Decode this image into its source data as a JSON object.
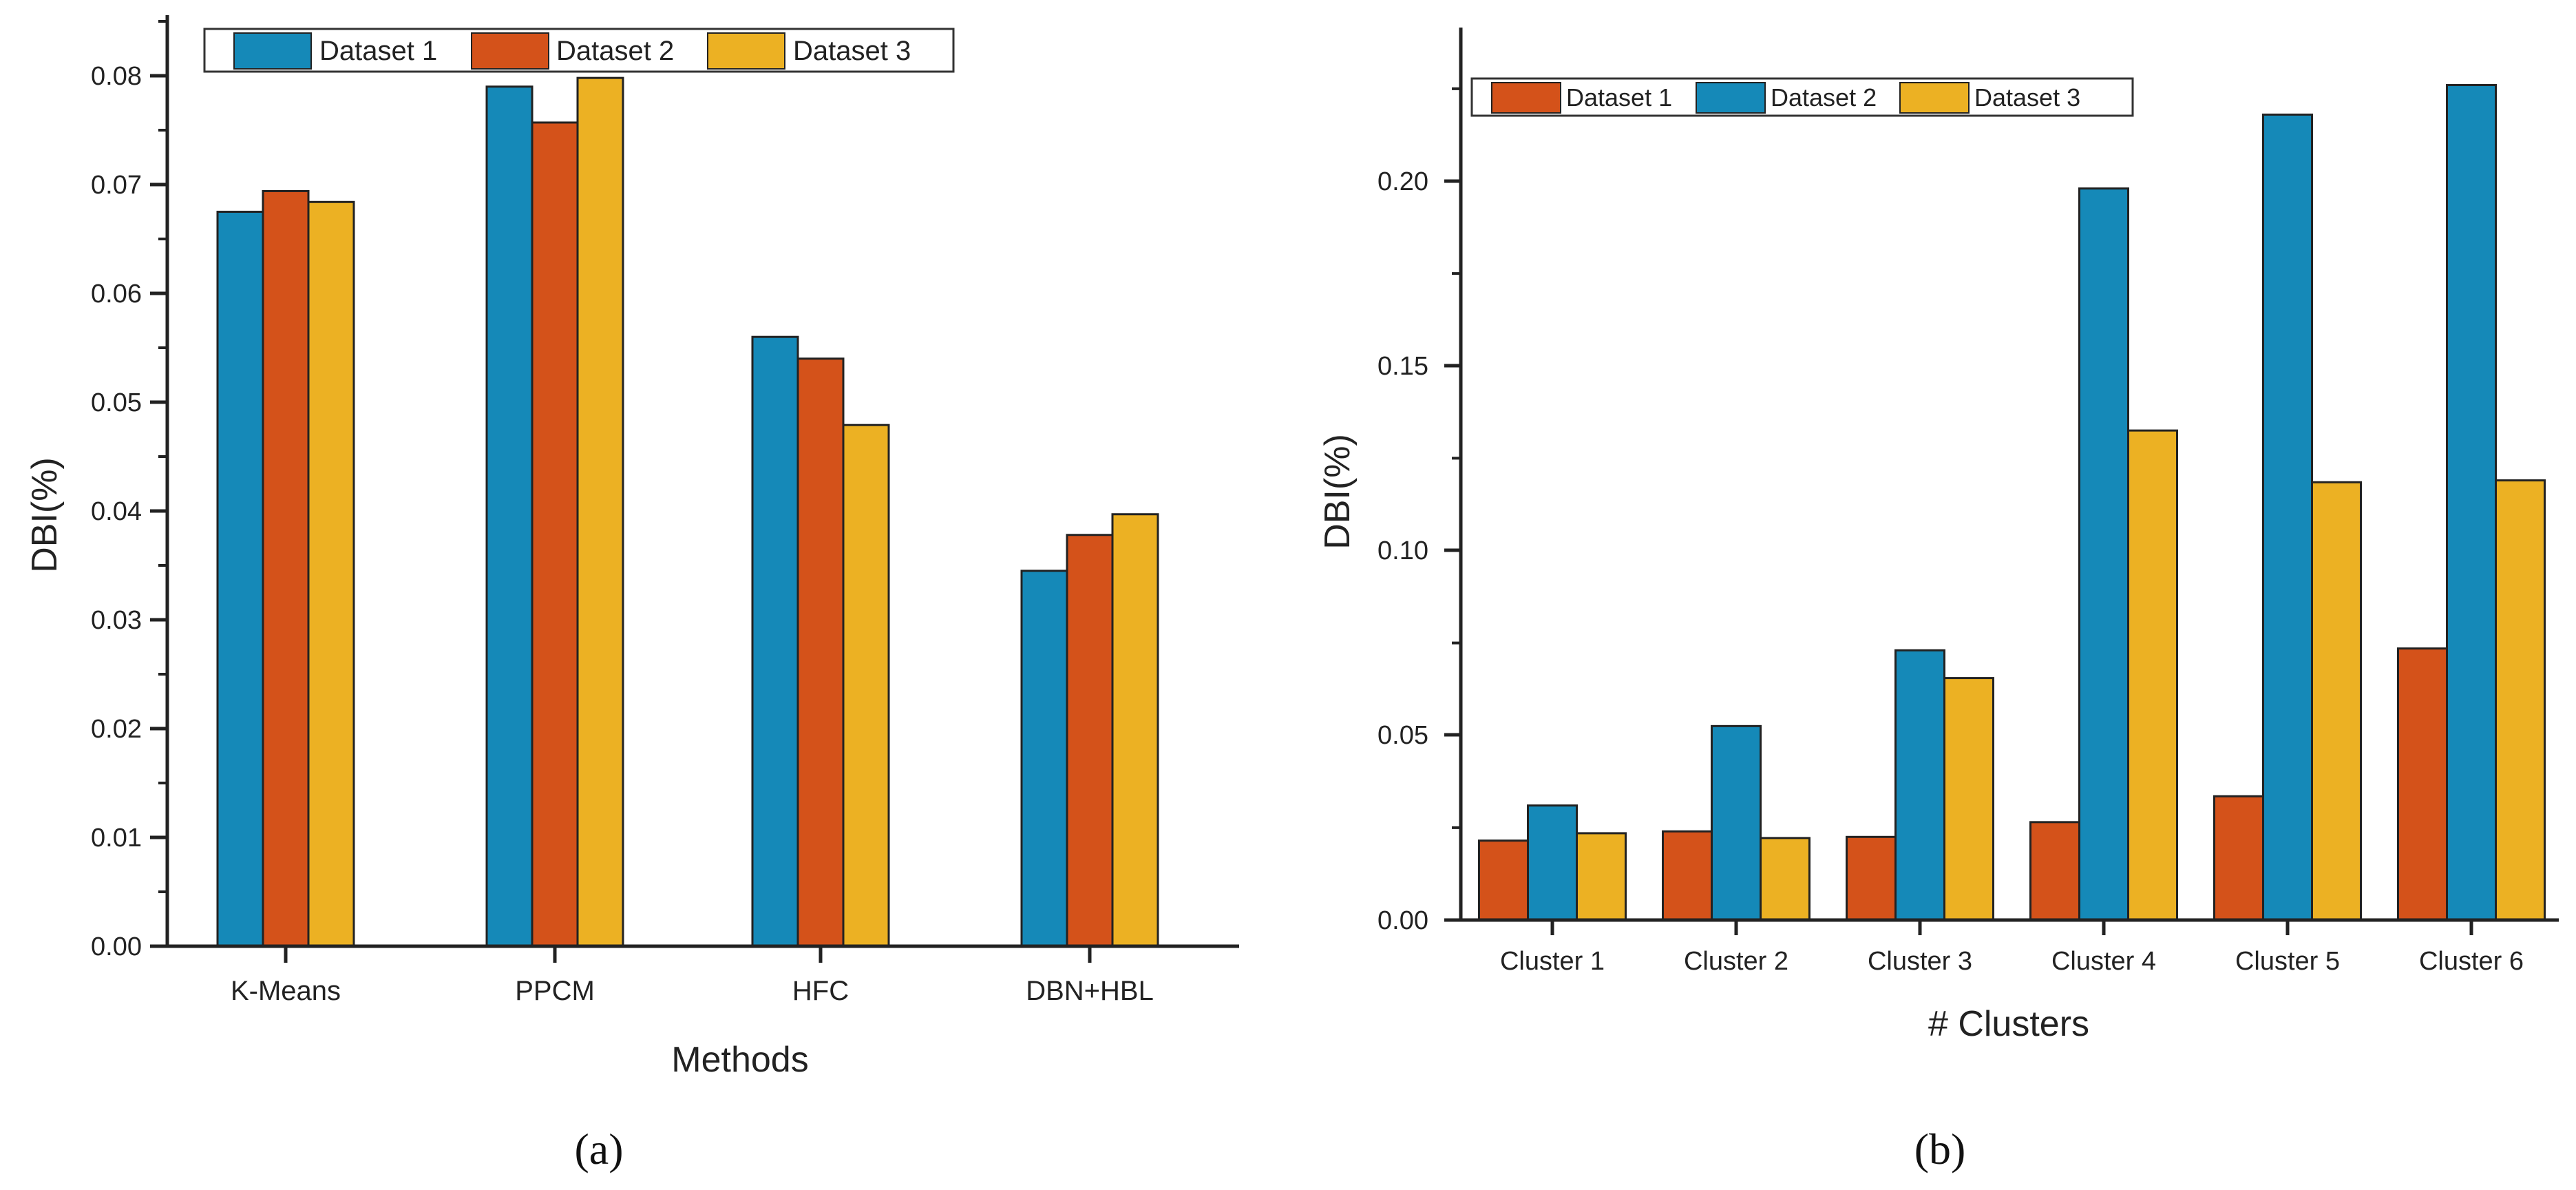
{
  "colors": {
    "blue": "#1589B8",
    "red": "#D4521A",
    "yellow": "#ECB123"
  },
  "chart_data": [
    {
      "panel_label": "(a)",
      "type": "bar",
      "xlabel": "Methods",
      "ylabel": "DBI(%)",
      "ylim": [
        0,
        0.085
      ],
      "yticks": [
        "0.00",
        "0.01",
        "0.02",
        "0.03",
        "0.04",
        "0.05",
        "0.06",
        "0.07",
        "0.08"
      ],
      "categories": [
        "K-Means",
        "PPCM",
        "HFC",
        "DBN+HBL"
      ],
      "legend_position": "top",
      "series": [
        {
          "name": "Dataset 1",
          "color": "#1589B8",
          "values": [
            0.0675,
            0.079,
            0.056,
            0.0345
          ]
        },
        {
          "name": "Dataset 2",
          "color": "#D4521A",
          "values": [
            0.0694,
            0.0757,
            0.054,
            0.0378
          ]
        },
        {
          "name": "Dataset 3",
          "color": "#ECB123",
          "values": [
            0.0684,
            0.0798,
            0.0479,
            0.0397
          ]
        }
      ]
    },
    {
      "panel_label": "(b)",
      "type": "bar",
      "xlabel": "# Clusters",
      "ylabel": "DBI(%)",
      "ylim": [
        0,
        0.24
      ],
      "yticks": [
        "0.00",
        "0.05",
        "0.10",
        "0.15",
        "0.20"
      ],
      "categories": [
        "Cluster 1",
        "Cluster 2",
        "Cluster 3",
        "Cluster 4",
        "Cluster 5",
        "Cluster 6"
      ],
      "legend_position": "top-left",
      "series": [
        {
          "name": "Dataset 1",
          "color": "#D4521A",
          "values": [
            0.0215,
            0.024,
            0.0225,
            0.0265,
            0.0335,
            0.0735
          ]
        },
        {
          "name": "Dataset 2",
          "color": "#1589B8",
          "values": [
            0.031,
            0.0525,
            0.073,
            0.198,
            0.218,
            0.226
          ]
        },
        {
          "name": "Dataset 3",
          "color": "#ECB123",
          "values": [
            0.0235,
            0.0222,
            0.0655,
            0.1325,
            0.1185,
            0.119
          ]
        }
      ]
    }
  ]
}
